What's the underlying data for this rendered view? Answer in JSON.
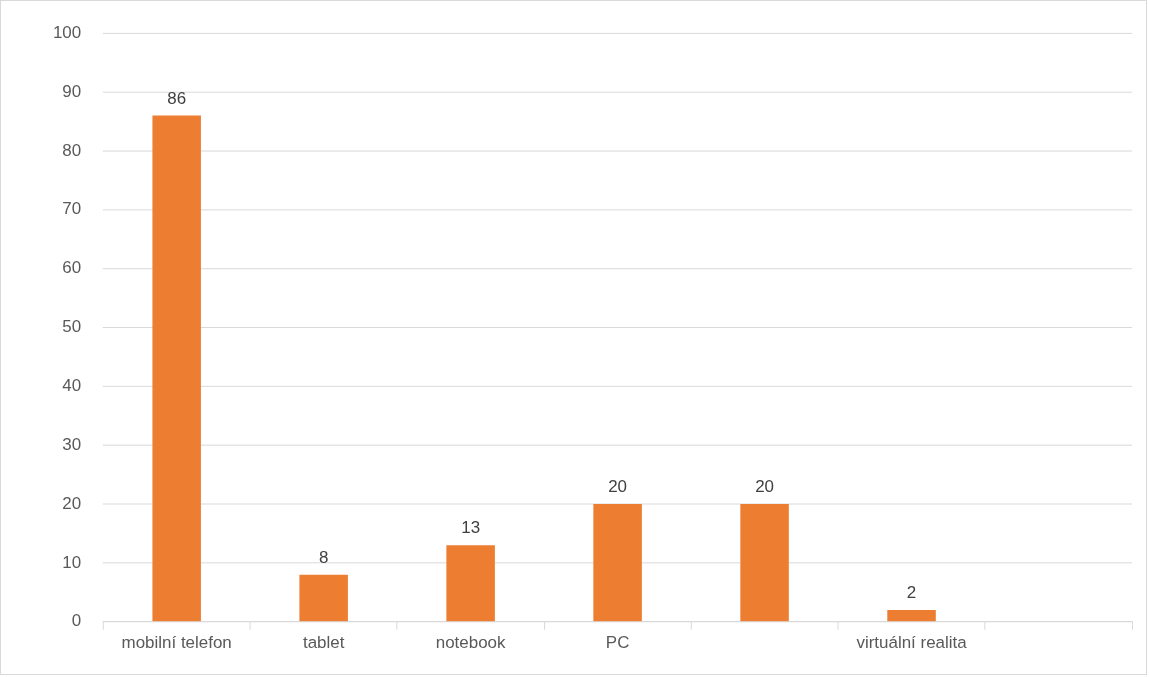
{
  "chart_data": {
    "type": "bar",
    "categories": [
      "mobilní telefon",
      "tablet",
      "notebook",
      "PC",
      null,
      "virtuální realita",
      null
    ],
    "values": [
      86,
      8,
      13,
      20,
      20,
      2,
      null
    ],
    "color": "#ed7d31",
    "ylim": [
      0,
      100
    ],
    "yticks": [
      0,
      10,
      20,
      30,
      40,
      50,
      60,
      70,
      80,
      90,
      100
    ],
    "grid": "y",
    "data_labels": true
  }
}
